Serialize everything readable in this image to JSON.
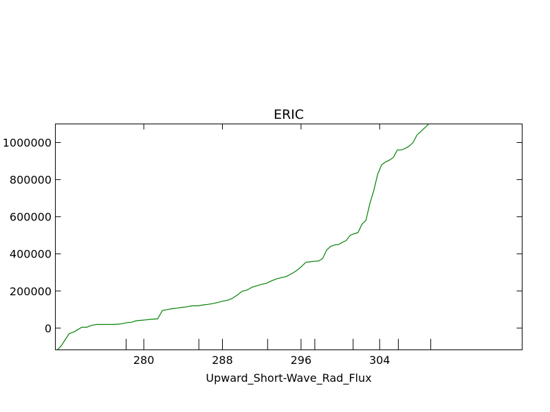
{
  "chart_data": {
    "type": "line",
    "title": "ERIC",
    "xlabel": "Upward_Short-Wave_Rad_Flux",
    "ylabel": "",
    "xlim": [
      271.0,
      318.5
    ],
    "ylim": [
      -117000,
      1100000
    ],
    "x_ticks": [
      280,
      288,
      296,
      304
    ],
    "x_tick_labels": [
      "280",
      "288",
      "296",
      "304"
    ],
    "x_minor_ticks": [
      278.2,
      285.6,
      292.6,
      297.4,
      301.3,
      305.9,
      309.2
    ],
    "y_ticks": [
      0,
      200000,
      400000,
      600000,
      800000,
      1000000
    ],
    "y_tick_labels": [
      "0",
      "200000",
      "400000",
      "600000",
      "800000",
      "1000000"
    ],
    "grid": false,
    "legend": "none",
    "series": [
      {
        "color": "#008000",
        "x": [
          271.2,
          271.6,
          272.4,
          272.9,
          273.7,
          274.2,
          274.7,
          275.2,
          276.1,
          276.8,
          277.6,
          278.3,
          278.8,
          279.2,
          279.7,
          280.3,
          280.8,
          281.4,
          281.9,
          282.4,
          282.9,
          283.4,
          283.9,
          284.4,
          284.9,
          285.5,
          286.0,
          286.5,
          287.0,
          287.5,
          288.0,
          288.5,
          289.0,
          289.5,
          290.0,
          290.5,
          291.0,
          291.5,
          292.0,
          292.5,
          293.0,
          293.5,
          294.0,
          294.5,
          295.0,
          295.5,
          296.0,
          296.5,
          297.0,
          297.4,
          297.8,
          298.2,
          298.6,
          299.0,
          299.4,
          299.8,
          300.2,
          300.6,
          301.0,
          301.4,
          301.8,
          302.2,
          302.6,
          303.0,
          303.4,
          303.8,
          304.2,
          304.6,
          305.0,
          305.4,
          305.8,
          306.2,
          306.6,
          307.0,
          307.4,
          307.8,
          308.2,
          308.6,
          309.0
        ],
        "y": [
          -117000,
          -95000,
          -30000,
          -20000,
          5000,
          5000,
          15000,
          20000,
          20000,
          20000,
          22000,
          30000,
          32000,
          40000,
          42000,
          45000,
          48000,
          50000,
          95000,
          100000,
          105000,
          108000,
          112000,
          115000,
          120000,
          120000,
          125000,
          128000,
          132000,
          138000,
          145000,
          150000,
          160000,
          178000,
          198000,
          205000,
          220000,
          228000,
          236000,
          242000,
          255000,
          265000,
          272000,
          278000,
          292000,
          308000,
          330000,
          355000,
          358000,
          361000,
          362000,
          375000,
          420000,
          440000,
          448000,
          450000,
          462000,
          472000,
          500000,
          508000,
          515000,
          560000,
          580000,
          670000,
          740000,
          830000,
          880000,
          895000,
          905000,
          920000,
          960000,
          960000,
          968000,
          980000,
          1000000,
          1040000,
          1060000,
          1080000,
          1100000
        ]
      }
    ]
  }
}
